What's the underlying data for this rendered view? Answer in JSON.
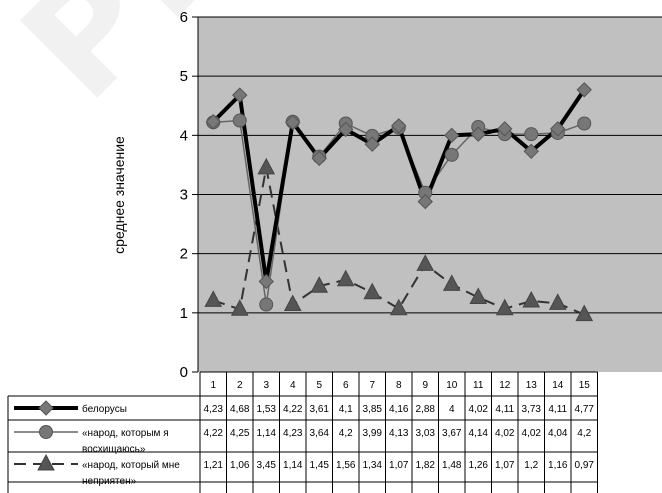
{
  "watermark": "РИЙ ГГ",
  "chart_data": {
    "type": "line",
    "title": "",
    "ylabel": "среднее значение",
    "ylim": [
      0,
      6
    ],
    "yticks": [
      0,
      1,
      2,
      3,
      4,
      5,
      6
    ],
    "grid": true,
    "legend_placement": "data-table",
    "categories": [
      "1",
      "2",
      "3",
      "4",
      "5",
      "6",
      "7",
      "8",
      "9",
      "10",
      "11",
      "12",
      "13",
      "14",
      "15"
    ],
    "series": [
      {
        "name": "белорусы",
        "labels": [
          "4,23",
          "4,68",
          "1,53",
          "4,22",
          "3,61",
          "4,1",
          "3,85",
          "4,16",
          "2,88",
          "4",
          "4,02",
          "4,11",
          "3,73",
          "4,11",
          "4,77"
        ],
        "values": [
          4.23,
          4.68,
          1.53,
          4.22,
          3.61,
          4.1,
          3.85,
          4.16,
          2.88,
          4,
          4.02,
          4.11,
          3.73,
          4.11,
          4.77
        ],
        "style": "bold-diamond",
        "color": "#000000"
      },
      {
        "name": "«народ, которым я восхищаюсь»",
        "labels": [
          "4,22",
          "4,25",
          "1,14",
          "4,23",
          "3,64",
          "4,2",
          "3,99",
          "4,13",
          "3,03",
          "3,67",
          "4,14",
          "4,02",
          "4,02",
          "4,04",
          "4,2"
        ],
        "values": [
          4.22,
          4.25,
          1.14,
          4.23,
          3.64,
          4.2,
          3.99,
          4.13,
          3.03,
          3.67,
          4.14,
          4.02,
          4.02,
          4.04,
          4.2
        ],
        "style": "thin-circle",
        "color": "#555555"
      },
      {
        "name": "«народ, который мне неприятен»",
        "labels": [
          "1,21",
          "1,06",
          "3,45",
          "1,14",
          "1,45",
          "1,56",
          "1,34",
          "1,07",
          "1,82",
          "1,48",
          "1,26",
          "1,07",
          "1,2",
          "1,16",
          "0,97"
        ],
        "values": [
          1.21,
          1.06,
          3.45,
          1.14,
          1.45,
          1.56,
          1.34,
          1.07,
          1.82,
          1.48,
          1.26,
          1.07,
          1.2,
          1.16,
          0.97
        ],
        "style": "dashed-triangle",
        "color": "#333333"
      }
    ],
    "colors": {
      "plot_bg": "#c0c0c0",
      "marker_fill": "#777777"
    }
  }
}
